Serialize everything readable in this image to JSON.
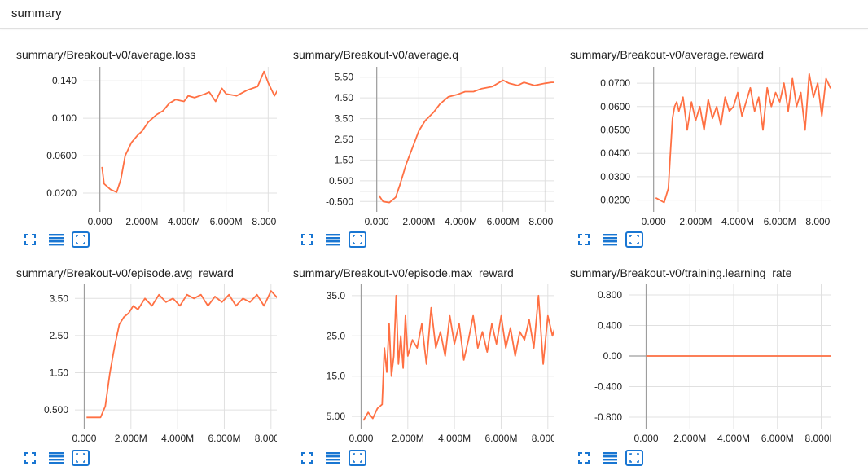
{
  "header": {
    "title": "summary"
  },
  "colors": {
    "series": "#ff7043",
    "axis": "#9e9e9e",
    "grid": "#e0e0e0",
    "icon": "#1976d2"
  },
  "icons": [
    "fullscreen-icon",
    "toggle-log-icon",
    "fit-domain-icon"
  ],
  "chart_data": [
    {
      "type": "line",
      "title": "summary/Breakout-v0/average.loss",
      "xlim": [
        -0.8,
        8.8
      ],
      "ylim": [
        0.0,
        0.155
      ],
      "xticks": [
        0,
        2,
        4,
        6,
        8
      ],
      "xtick_labels": [
        "0.000",
        "2.000M",
        "4.000M",
        "6.000M",
        "8.000M"
      ],
      "yticks": [
        0.02,
        0.06,
        0.1,
        0.14
      ],
      "ytick_labels": [
        "0.0200",
        "0.0600",
        "0.100",
        "0.140"
      ],
      "x": [
        0.1,
        0.2,
        0.5,
        0.8,
        1.0,
        1.2,
        1.5,
        1.8,
        2.0,
        2.3,
        2.7,
        3.0,
        3.3,
        3.6,
        4.0,
        4.2,
        4.5,
        5.0,
        5.2,
        5.5,
        5.8,
        6.0,
        6.5,
        7.0,
        7.5,
        7.8,
        8.0,
        8.3,
        8.5,
        8.7
      ],
      "y": [
        0.048,
        0.03,
        0.024,
        0.021,
        0.035,
        0.06,
        0.074,
        0.082,
        0.086,
        0.096,
        0.104,
        0.108,
        0.116,
        0.12,
        0.118,
        0.124,
        0.122,
        0.126,
        0.128,
        0.118,
        0.132,
        0.126,
        0.124,
        0.13,
        0.134,
        0.15,
        0.138,
        0.124,
        0.132,
        0.14
      ]
    },
    {
      "type": "line",
      "title": "summary/Breakout-v0/average.q",
      "xlim": [
        -0.8,
        8.8
      ],
      "ylim": [
        -1.0,
        6.0
      ],
      "xticks": [
        0,
        2,
        4,
        6,
        8
      ],
      "xtick_labels": [
        "0.000",
        "2.000M",
        "4.000M",
        "6.000M",
        "8.000M"
      ],
      "yticks": [
        -0.5,
        0.5,
        1.5,
        2.5,
        3.5,
        4.5,
        5.5
      ],
      "ytick_labels": [
        "-0.500",
        "0.500",
        "1.50",
        "2.50",
        "3.50",
        "4.50",
        "5.50"
      ],
      "x": [
        0.1,
        0.3,
        0.6,
        0.9,
        1.1,
        1.4,
        1.7,
        2.0,
        2.3,
        2.7,
        3.0,
        3.4,
        3.8,
        4.2,
        4.6,
        5.0,
        5.5,
        6.0,
        6.3,
        6.7,
        7.0,
        7.5,
        8.0,
        8.3,
        8.6
      ],
      "y": [
        -0.2,
        -0.5,
        -0.55,
        -0.3,
        0.3,
        1.3,
        2.1,
        2.9,
        3.4,
        3.8,
        4.2,
        4.55,
        4.65,
        4.8,
        4.8,
        4.95,
        5.05,
        5.35,
        5.2,
        5.1,
        5.25,
        5.1,
        5.2,
        5.25,
        5.25
      ]
    },
    {
      "type": "line",
      "title": "summary/Breakout-v0/average.reward",
      "xlim": [
        -0.8,
        8.8
      ],
      "ylim": [
        0.015,
        0.077
      ],
      "xticks": [
        0,
        2,
        4,
        6,
        8
      ],
      "xtick_labels": [
        "0.000",
        "2.000M",
        "4.000M",
        "6.000M",
        "8.000M"
      ],
      "yticks": [
        0.02,
        0.03,
        0.04,
        0.05,
        0.06,
        0.07
      ],
      "ytick_labels": [
        "0.0200",
        "0.0300",
        "0.0400",
        "0.0500",
        "0.0600",
        "0.0700"
      ],
      "x": [
        0.1,
        0.3,
        0.5,
        0.7,
        0.8,
        0.9,
        1.0,
        1.1,
        1.2,
        1.4,
        1.6,
        1.8,
        2.0,
        2.2,
        2.4,
        2.6,
        2.8,
        3.0,
        3.2,
        3.4,
        3.6,
        3.8,
        4.0,
        4.2,
        4.4,
        4.6,
        4.8,
        5.0,
        5.2,
        5.4,
        5.6,
        5.8,
        6.0,
        6.2,
        6.4,
        6.6,
        6.8,
        7.0,
        7.2,
        7.4,
        7.6,
        7.8,
        8.0,
        8.2,
        8.4,
        8.6
      ],
      "y": [
        0.021,
        0.02,
        0.019,
        0.025,
        0.04,
        0.055,
        0.06,
        0.062,
        0.058,
        0.064,
        0.05,
        0.062,
        0.054,
        0.06,
        0.05,
        0.063,
        0.055,
        0.06,
        0.052,
        0.064,
        0.058,
        0.06,
        0.066,
        0.056,
        0.062,
        0.068,
        0.058,
        0.064,
        0.05,
        0.068,
        0.06,
        0.066,
        0.062,
        0.07,
        0.058,
        0.072,
        0.06,
        0.066,
        0.05,
        0.074,
        0.064,
        0.07,
        0.056,
        0.072,
        0.068,
        0.069
      ]
    },
    {
      "type": "line",
      "title": "summary/Breakout-v0/episode.avg_reward",
      "xlim": [
        -0.4,
        8.6
      ],
      "ylim": [
        0.0,
        3.9
      ],
      "xticks": [
        0,
        2,
        4,
        6,
        8
      ],
      "xtick_labels": [
        "0.000",
        "2.000M",
        "4.000M",
        "6.000M",
        "8.000M"
      ],
      "yticks": [
        0.5,
        1.5,
        2.5,
        3.5
      ],
      "ytick_labels": [
        "0.500",
        "1.50",
        "2.50",
        "3.50"
      ],
      "x": [
        0.1,
        0.4,
        0.7,
        0.9,
        1.1,
        1.3,
        1.5,
        1.7,
        1.9,
        2.1,
        2.3,
        2.6,
        2.9,
        3.2,
        3.5,
        3.8,
        4.1,
        4.4,
        4.7,
        5.0,
        5.3,
        5.6,
        5.9,
        6.2,
        6.5,
        6.8,
        7.1,
        7.4,
        7.7,
        8.0,
        8.3,
        8.5
      ],
      "y": [
        0.3,
        0.3,
        0.3,
        0.6,
        1.5,
        2.2,
        2.8,
        3.0,
        3.1,
        3.3,
        3.2,
        3.5,
        3.3,
        3.6,
        3.4,
        3.5,
        3.3,
        3.6,
        3.5,
        3.6,
        3.3,
        3.55,
        3.4,
        3.6,
        3.3,
        3.5,
        3.4,
        3.6,
        3.3,
        3.7,
        3.5,
        3.4
      ]
    },
    {
      "type": "line",
      "title": "summary/Breakout-v0/episode.max_reward",
      "xlim": [
        -0.4,
        8.6
      ],
      "ylim": [
        2.0,
        38.0
      ],
      "xticks": [
        0,
        2,
        4,
        6,
        8
      ],
      "xtick_labels": [
        "0.000",
        "2.000M",
        "4.000M",
        "6.000M",
        "8.000M"
      ],
      "yticks": [
        5,
        15,
        25,
        35
      ],
      "ytick_labels": [
        "5.00",
        "15.0",
        "25.0",
        "35.0"
      ],
      "x": [
        0.1,
        0.3,
        0.5,
        0.7,
        0.9,
        1.0,
        1.1,
        1.2,
        1.3,
        1.4,
        1.5,
        1.6,
        1.7,
        1.8,
        1.9,
        2.0,
        2.2,
        2.4,
        2.6,
        2.8,
        3.0,
        3.2,
        3.4,
        3.6,
        3.8,
        4.0,
        4.2,
        4.4,
        4.6,
        4.8,
        5.0,
        5.2,
        5.4,
        5.6,
        5.8,
        6.0,
        6.2,
        6.4,
        6.6,
        6.8,
        7.0,
        7.2,
        7.4,
        7.6,
        7.8,
        8.0,
        8.2,
        8.4,
        8.5
      ],
      "y": [
        4,
        6,
        4.5,
        7,
        8,
        22,
        16,
        28,
        15,
        20,
        35,
        18,
        25,
        17,
        30,
        20,
        24,
        22,
        28,
        18,
        32,
        22,
        26,
        20,
        30,
        23,
        28,
        19,
        24,
        30,
        22,
        26,
        21,
        28,
        23,
        30,
        22,
        27,
        20,
        26,
        24,
        29,
        22,
        35,
        18,
        30,
        25,
        29,
        29
      ]
    },
    {
      "type": "line",
      "title": "summary/Breakout-v0/training.learning_rate",
      "xlim": [
        -0.8,
        8.8
      ],
      "ylim": [
        -0.95,
        0.95
      ],
      "xticks": [
        0,
        2,
        4,
        6,
        8
      ],
      "xtick_labels": [
        "0.000",
        "2.000M",
        "4.000M",
        "6.000M",
        "8.000M"
      ],
      "yticks": [
        -0.8,
        -0.4,
        0.0,
        0.4,
        0.8
      ],
      "ytick_labels": [
        "-0.800",
        "-0.400",
        "0.00",
        "0.400",
        "0.800"
      ],
      "x": [
        0.0,
        8.6
      ],
      "y": [
        0.0,
        0.0
      ]
    }
  ]
}
